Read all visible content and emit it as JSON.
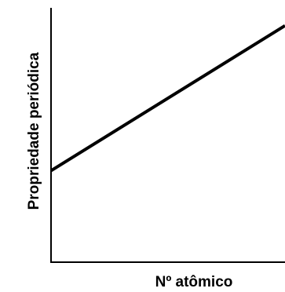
{
  "chart_data": {
    "type": "line",
    "title": "",
    "xlabel": "Nº atômico",
    "ylabel": "Propriedade periódica",
    "grid": false,
    "legend": "none",
    "ticks": false,
    "series": [
      {
        "values_x": [
          0,
          1
        ],
        "values_y": [
          0.36,
          0.93
        ]
      }
    ],
    "ylim": [
      0,
      1
    ],
    "xlim": [
      0,
      1
    ],
    "colors": {
      "line": "#000000",
      "axis": "#000000"
    }
  }
}
